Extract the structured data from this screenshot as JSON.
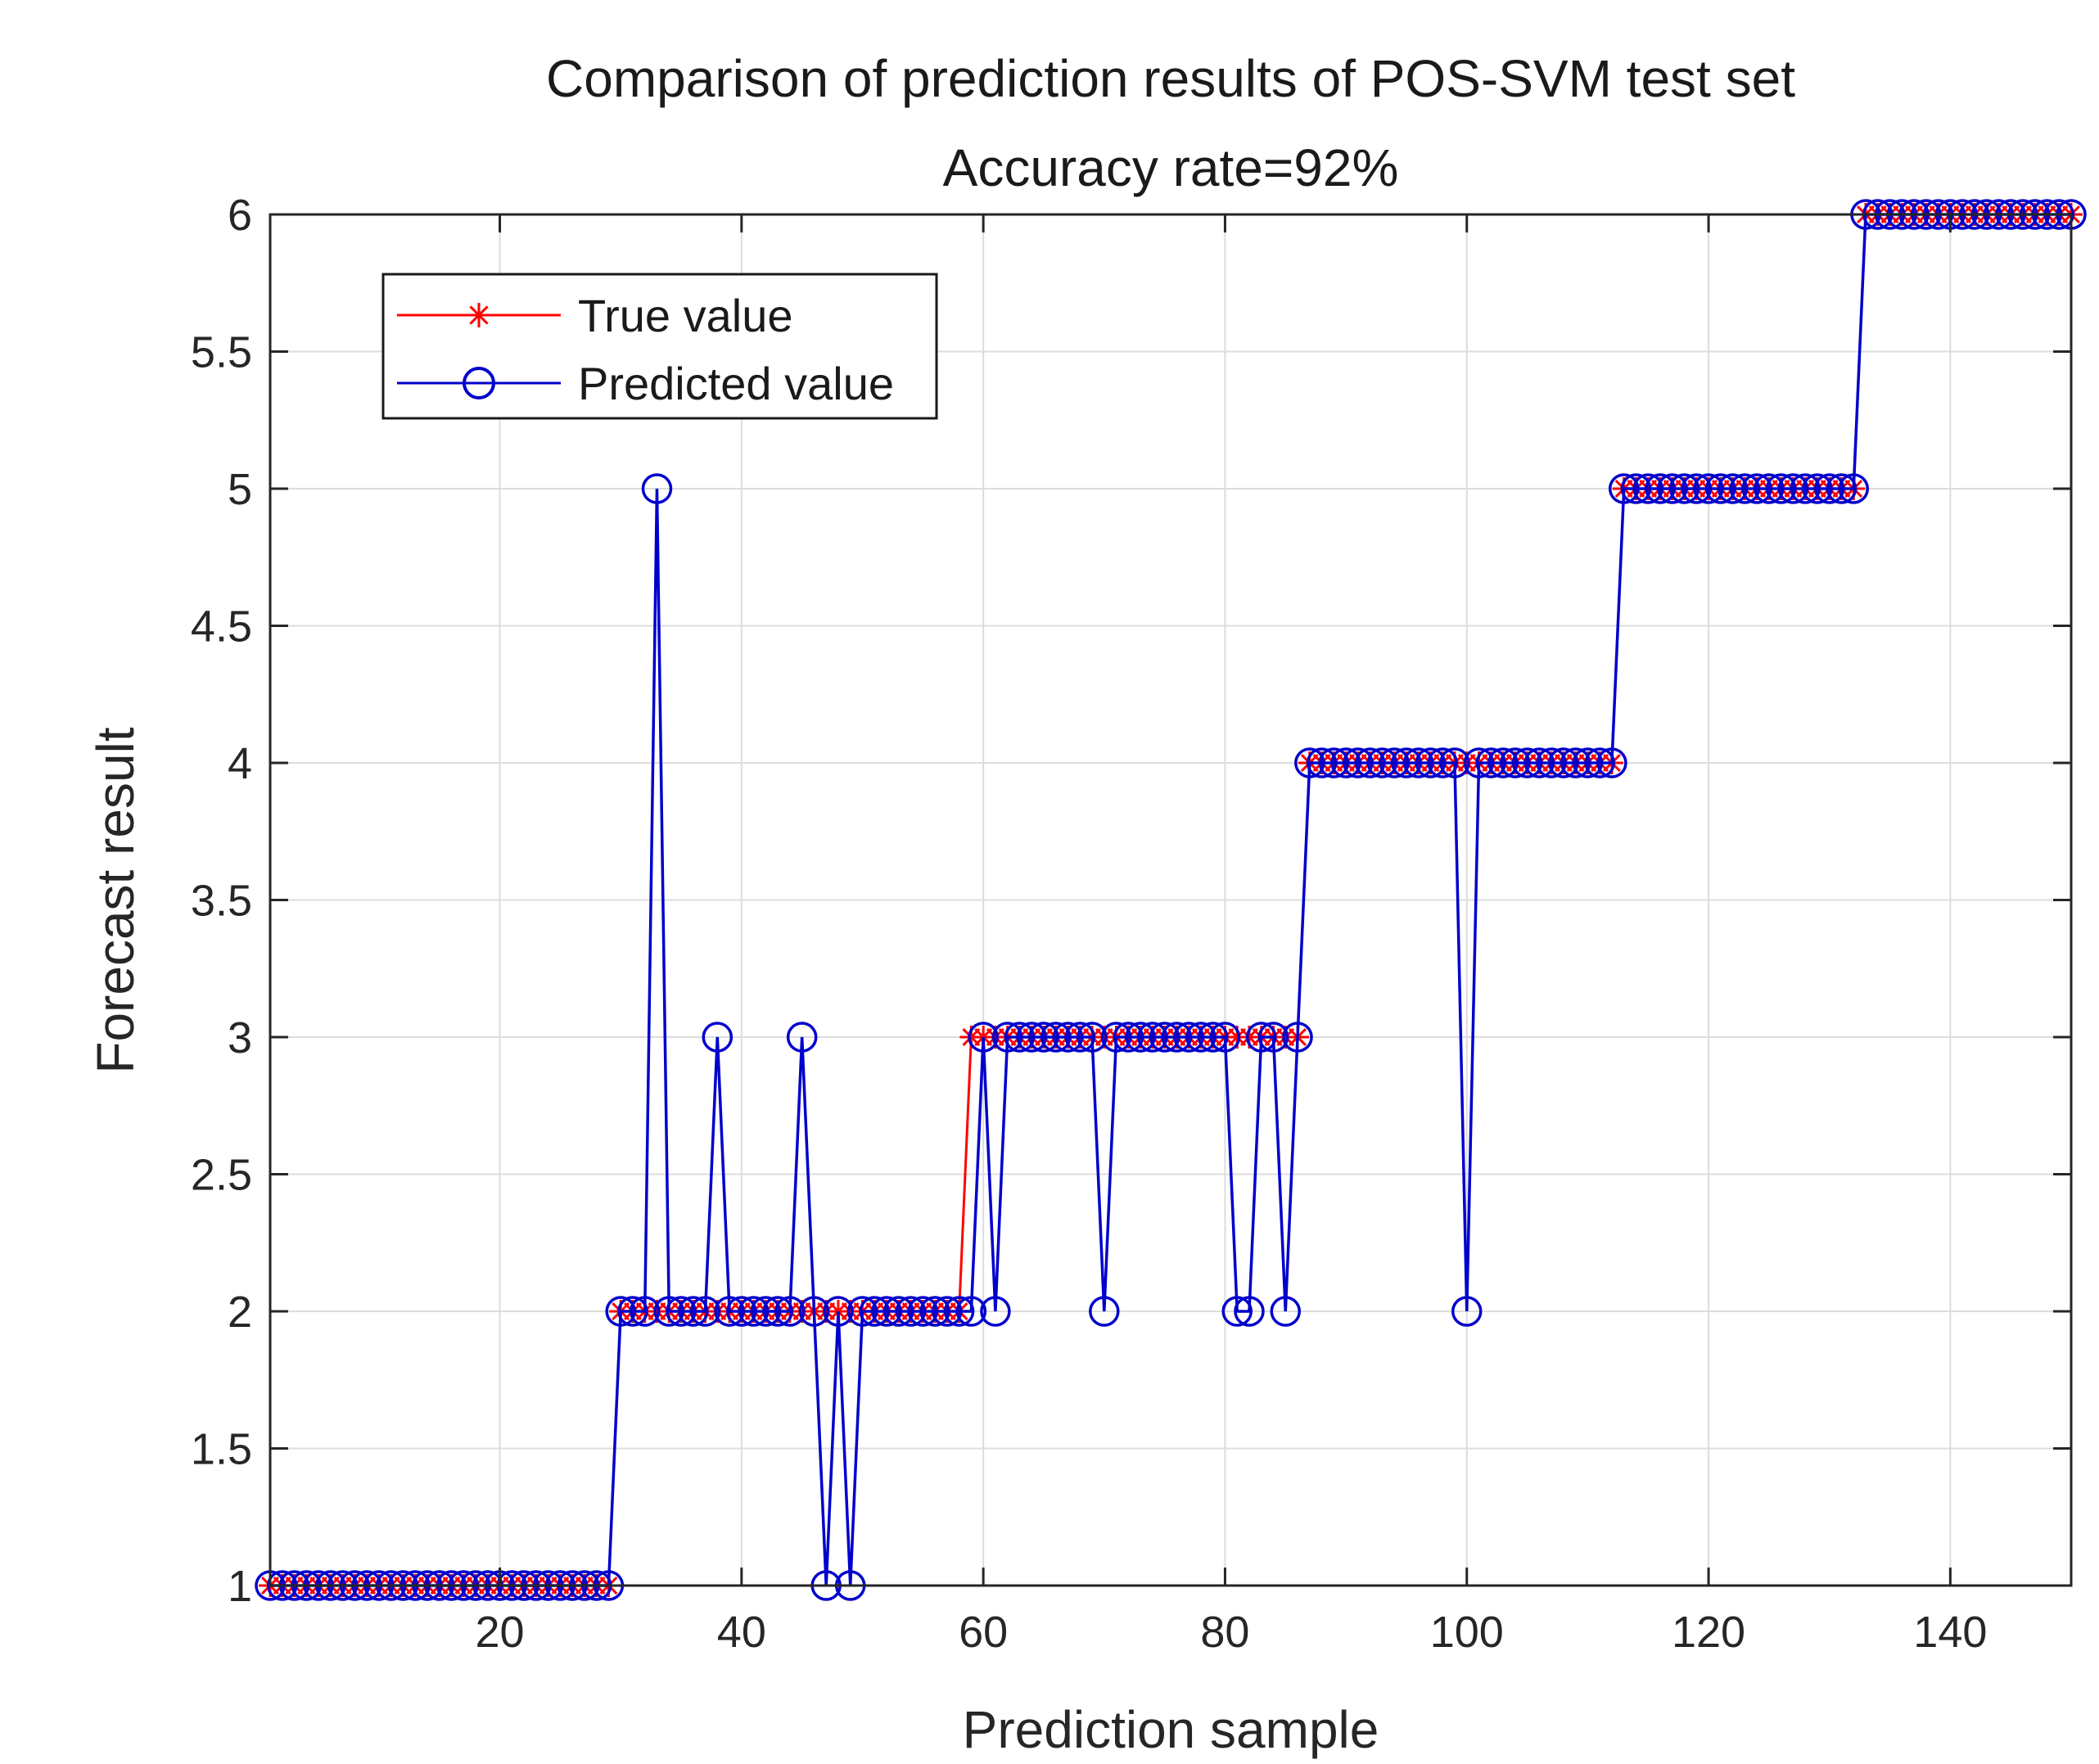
{
  "chart_data": {
    "type": "line",
    "title": "Comparison of prediction results of POS-SVM test set",
    "subtitle": "Accuracy rate=92%",
    "xlabel": "Prediction sample",
    "ylabel": "Forecast result",
    "xlim": [
      1,
      150
    ],
    "ylim": [
      1,
      6
    ],
    "xticks": [
      20,
      40,
      60,
      80,
      100,
      120,
      140
    ],
    "yticks": [
      1,
      1.5,
      2,
      2.5,
      3,
      3.5,
      4,
      4.5,
      5,
      5.5,
      6
    ],
    "grid": true,
    "legend_position": "top-left",
    "series": [
      {
        "name": "True value",
        "color": "#ff0000",
        "marker": "asterisk",
        "runs": [
          {
            "value": 1,
            "from": 1,
            "to": 29
          },
          {
            "value": 2,
            "from": 30,
            "to": 58
          },
          {
            "value": 3,
            "from": 59,
            "to": 86
          },
          {
            "value": 4,
            "from": 87,
            "to": 112
          },
          {
            "value": 5,
            "from": 113,
            "to": 132
          },
          {
            "value": 6,
            "from": 133,
            "to": 150
          }
        ]
      },
      {
        "name": "Predicted value",
        "color": "#0000cc",
        "marker": "circle",
        "runs": [
          {
            "value": 1,
            "from": 1,
            "to": 29
          },
          {
            "value": 2,
            "from": 30,
            "to": 32
          },
          {
            "value": 5,
            "from": 33,
            "to": 33
          },
          {
            "value": 2,
            "from": 34,
            "to": 37
          },
          {
            "value": 3,
            "from": 38,
            "to": 38
          },
          {
            "value": 2,
            "from": 39,
            "to": 44
          },
          {
            "value": 3,
            "from": 45,
            "to": 45
          },
          {
            "value": 2,
            "from": 46,
            "to": 46
          },
          {
            "value": 1,
            "from": 47,
            "to": 47
          },
          {
            "value": 2,
            "from": 48,
            "to": 48
          },
          {
            "value": 1,
            "from": 49,
            "to": 49
          },
          {
            "value": 2,
            "from": 50,
            "to": 59
          },
          {
            "value": 3,
            "from": 60,
            "to": 60
          },
          {
            "value": 2,
            "from": 61,
            "to": 61
          },
          {
            "value": 3,
            "from": 62,
            "to": 69
          },
          {
            "value": 2,
            "from": 70,
            "to": 70
          },
          {
            "value": 3,
            "from": 71,
            "to": 80
          },
          {
            "value": 2,
            "from": 81,
            "to": 82
          },
          {
            "value": 3,
            "from": 83,
            "to": 84
          },
          {
            "value": 2,
            "from": 85,
            "to": 85
          },
          {
            "value": 3,
            "from": 86,
            "to": 86
          },
          {
            "value": 4,
            "from": 87,
            "to": 99
          },
          {
            "value": 2,
            "from": 100,
            "to": 100
          },
          {
            "value": 4,
            "from": 101,
            "to": 112
          },
          {
            "value": 5,
            "from": 113,
            "to": 132
          },
          {
            "value": 6,
            "from": 133,
            "to": 150
          }
        ]
      }
    ]
  }
}
